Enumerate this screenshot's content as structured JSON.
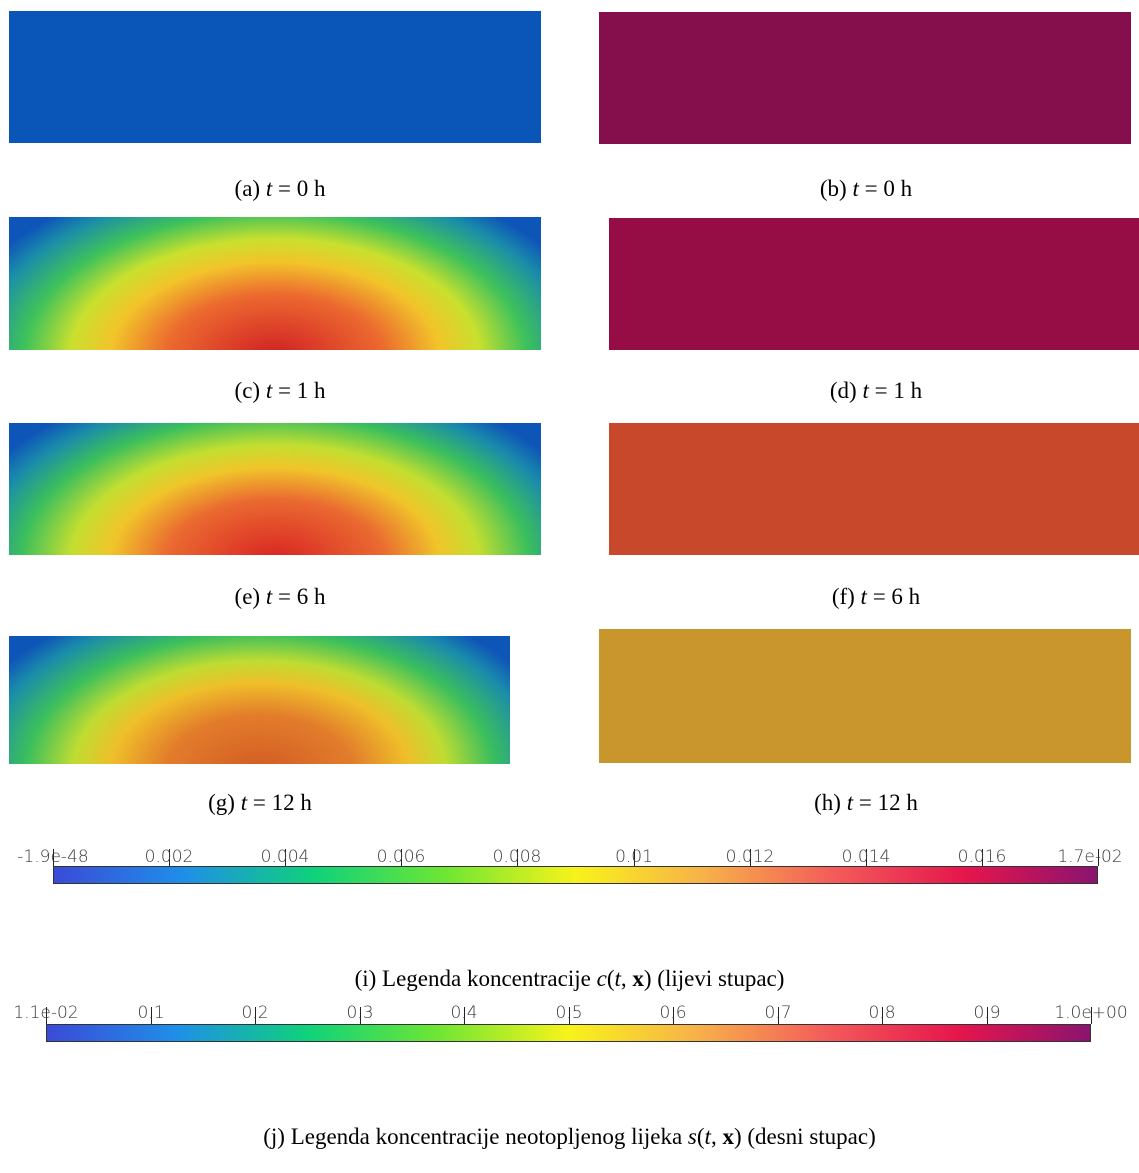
{
  "panels": [
    {
      "id": "a",
      "caption_prefix": "(a) ",
      "t": "t",
      "eq": " = 0 h",
      "kind": "uniform",
      "color": "#0a55b8"
    },
    {
      "id": "b",
      "caption_prefix": "(b) ",
      "t": "t",
      "eq": " = 0 h",
      "kind": "uniform",
      "color": "#850f4d"
    },
    {
      "id": "c",
      "caption_prefix": "(c) ",
      "t": "t",
      "eq": " = 1 h",
      "kind": "gradient",
      "peak": "#d01f24"
    },
    {
      "id": "d",
      "caption_prefix": "(d) ",
      "t": "t",
      "eq": " = 1 h",
      "kind": "uniform",
      "color": "#960c45"
    },
    {
      "id": "e",
      "caption_prefix": "(e) ",
      "t": "t",
      "eq": " = 6 h",
      "kind": "gradient",
      "peak": "#d82223"
    },
    {
      "id": "f",
      "caption_prefix": "(f) ",
      "t": "t",
      "eq": " = 6 h",
      "kind": "uniform",
      "color": "#c7482a"
    },
    {
      "id": "g",
      "caption_prefix": "(g) ",
      "t": "t",
      "eq": " = 12 h",
      "kind": "gradient",
      "peak": "#d25c24"
    },
    {
      "id": "h",
      "caption_prefix": "(h) ",
      "t": "t",
      "eq": " = 12 h",
      "kind": "uniform",
      "color": "#c8962c"
    }
  ],
  "legend_c": {
    "ticks": [
      "-1.9e-48",
      "0.002",
      "0.004",
      "0.006",
      "0.008",
      "0.01",
      "0.012",
      "0.014",
      "0.016",
      "1.7e-02"
    ],
    "caption": {
      "prefix": "(i) Legenda koncentracije ",
      "func": "c",
      "open": "(",
      "t": "t",
      "sep": ", ",
      "x": "x",
      "close": ")",
      "suffix": " (lijevi stupac)"
    }
  },
  "legend_s": {
    "ticks": [
      "1.1e-02",
      "0.1",
      "0.2",
      "0.3",
      "0.4",
      "0.5",
      "0.6",
      "0.7",
      "0.8",
      "0.9",
      "1.0e+00"
    ],
    "caption": {
      "prefix": "(j) Legenda koncentracije neotopljenog lijeka ",
      "func": "s",
      "open": "(",
      "t": "t",
      "sep": ", ",
      "x": "x",
      "close": ")",
      "suffix": " (desni stupac)"
    }
  },
  "colormap": [
    "#3a4bd8",
    "#1f8fe8",
    "#0fd27a",
    "#6ee634",
    "#f8f31a",
    "#f7b04a",
    "#f35a5a",
    "#e5154c",
    "#8a1470"
  ]
}
